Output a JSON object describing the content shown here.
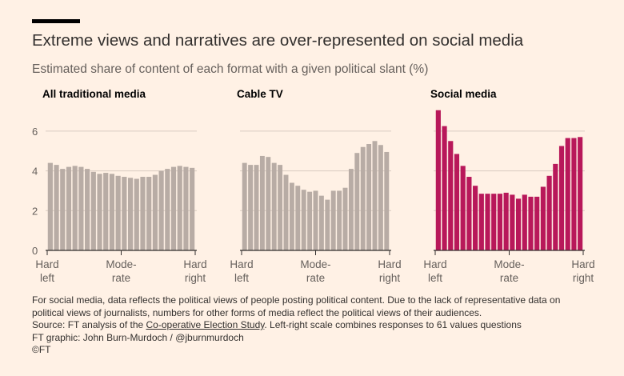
{
  "title": "Extreme views and narratives are over-represented on social media",
  "subtitle": "Estimated share of content of each format with a given political slant (%)",
  "colors": {
    "background": "#fff1e5",
    "traditional": "#b8aca5",
    "social": "#b8185a",
    "grid": "#d9cbc0",
    "axis": "#33302e"
  },
  "chart_data": [
    {
      "type": "bar",
      "title": "All traditional media",
      "ylim": [
        0,
        7
      ],
      "yticks": [
        0,
        2,
        4,
        6
      ],
      "xlabels": [
        "Hard left",
        "Mode-rate",
        "Hard right"
      ],
      "values": [
        4.4,
        4.3,
        4.1,
        4.2,
        4.25,
        4.2,
        4.1,
        3.95,
        3.85,
        3.9,
        3.85,
        3.75,
        3.7,
        3.65,
        3.6,
        3.7,
        3.7,
        3.8,
        4.0,
        4.1,
        4.2,
        4.25,
        4.2,
        4.15
      ]
    },
    {
      "type": "bar",
      "title": "Cable TV",
      "ylim": [
        0,
        7
      ],
      "yticks": [
        0,
        2,
        4,
        6
      ],
      "xlabels": [
        "Hard left",
        "Mode-rate",
        "Hard right"
      ],
      "values": [
        4.4,
        4.3,
        4.3,
        4.75,
        4.7,
        4.4,
        4.3,
        3.8,
        3.4,
        3.25,
        3.05,
        2.95,
        3.0,
        2.75,
        2.55,
        3.0,
        3.0,
        3.15,
        4.1,
        4.9,
        5.2,
        5.35,
        5.5,
        5.3,
        4.95
      ]
    },
    {
      "type": "bar",
      "title": "Social media",
      "ylim": [
        0,
        7
      ],
      "yticks": [
        0,
        2,
        4,
        6
      ],
      "xlabels": [
        "Hard left",
        "Mode-rate",
        "Hard right"
      ],
      "values": [
        7.05,
        6.25,
        5.5,
        4.85,
        4.25,
        3.7,
        3.25,
        2.85,
        2.85,
        2.85,
        2.85,
        2.9,
        2.8,
        2.6,
        2.8,
        2.7,
        2.7,
        3.2,
        3.75,
        4.35,
        5.25,
        5.65,
        5.65,
        5.7
      ]
    }
  ],
  "footer": {
    "note1": "For social media, data reflects the political views of people posting political content. Due to the lack of representative data on",
    "note2": "political views of journalists, numbers for other forms of media reflect the political views of their audiences.",
    "source_prefix": "Source: FT analysis of the ",
    "source_link": "Co-operative Election Study",
    "source_suffix": ". Left-right scale combines responses to 61 values questions",
    "credit": "FT graphic: John Burn-Murdoch / @jburnmurdoch",
    "copyright": "©FT"
  }
}
